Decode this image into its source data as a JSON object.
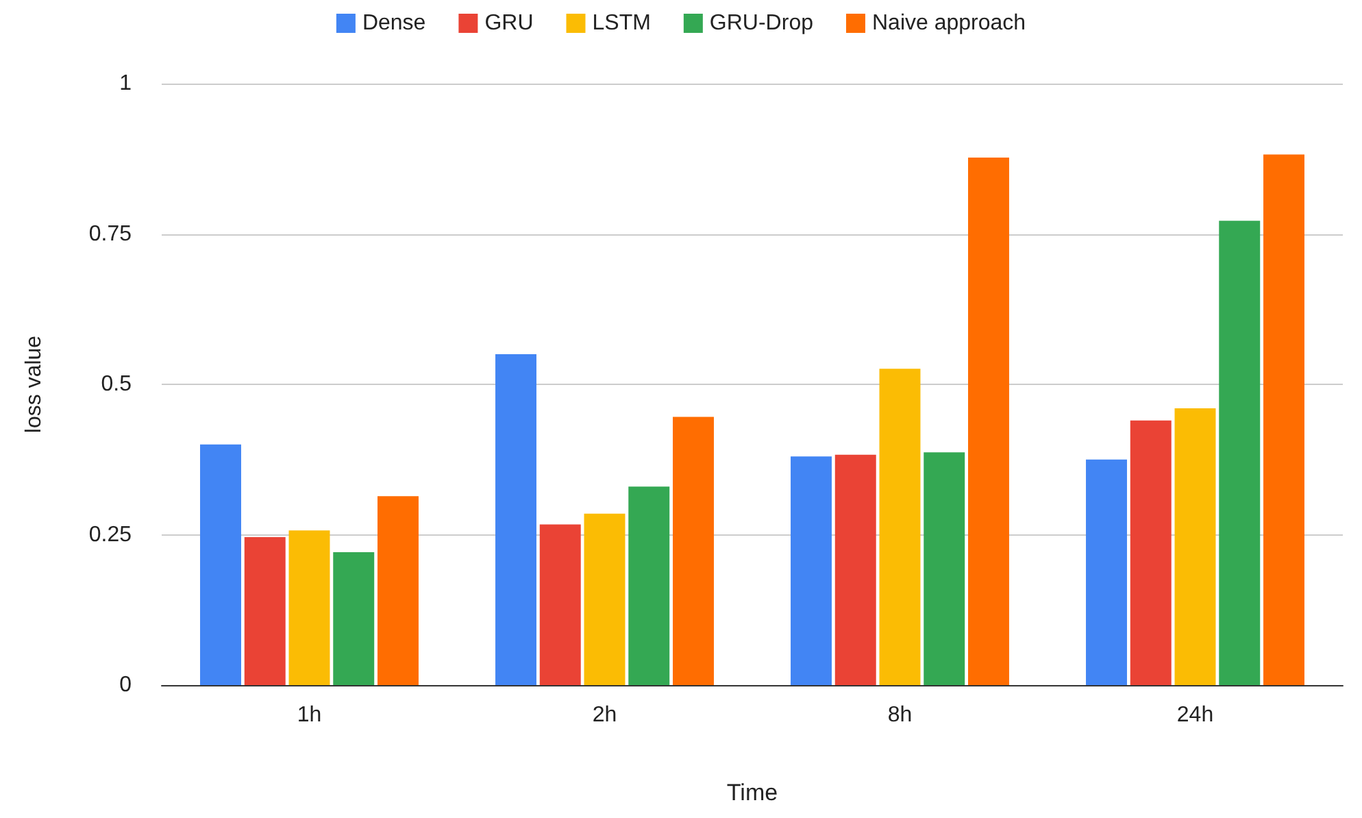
{
  "chart_data": {
    "type": "bar",
    "xlabel": "Time",
    "ylabel": "loss value",
    "categories": [
      "1h",
      "2h",
      "8h",
      "24h"
    ],
    "series": [
      {
        "name": "Dense",
        "color": "#4285f4",
        "values": [
          0.4,
          0.55,
          0.38,
          0.375
        ]
      },
      {
        "name": "GRU",
        "color": "#ea4335",
        "values": [
          0.246,
          0.267,
          0.383,
          0.44
        ]
      },
      {
        "name": "LSTM",
        "color": "#fbbc04",
        "values": [
          0.257,
          0.285,
          0.526,
          0.46
        ]
      },
      {
        "name": "GRU-Drop",
        "color": "#34a853",
        "values": [
          0.221,
          0.33,
          0.387,
          0.772
        ]
      },
      {
        "name": "Naive approach",
        "color": "#ff6d01",
        "values": [
          0.314,
          0.446,
          0.877,
          0.882
        ]
      }
    ],
    "ylim": [
      0,
      1
    ],
    "yticks": [
      0,
      0.25,
      0.5,
      0.75,
      1
    ],
    "grid": "y",
    "legend": "top"
  }
}
